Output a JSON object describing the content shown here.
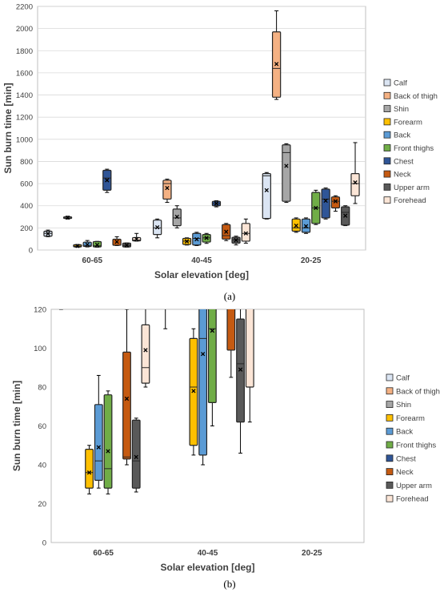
{
  "chart_data": [
    {
      "type": "box",
      "panel_label": "(a)",
      "categories": [
        "60-65",
        "40-45",
        "20-25"
      ],
      "xlabel": "Solar elevation [deg]",
      "ylabel": "Sun burn time [min]",
      "ylim": [
        0,
        2200
      ],
      "yticks": [
        0,
        200,
        400,
        600,
        800,
        1000,
        1200,
        1400,
        1600,
        1800,
        2000,
        2200
      ],
      "grid": true,
      "legend_position": "right",
      "series": [
        {
          "name": "Calf",
          "color": "#dbe5f3",
          "boxes": [
            {
              "min": 120,
              "q1": 125,
              "median": 150,
              "q3": 170,
              "max": 180,
              "mean": 148
            },
            {
              "min": 110,
              "q1": 140,
              "median": 200,
              "q3": 270,
              "max": 280,
              "mean": 205
            },
            {
              "min": 280,
              "q1": 285,
              "median": 670,
              "q3": 690,
              "max": 700,
              "mean": 540
            }
          ]
        },
        {
          "name": "Back of thigh",
          "color": "#f4b183",
          "boxes": [
            null,
            {
              "min": 430,
              "q1": 460,
              "median": 600,
              "q3": 630,
              "max": 640,
              "mean": 560
            },
            {
              "min": 1360,
              "q1": 1380,
              "median": 1640,
              "q3": 1970,
              "max": 2160,
              "mean": 1680
            }
          ]
        },
        {
          "name": "Shin",
          "color": "#a6a6a6",
          "boxes": [
            {
              "min": 280,
              "q1": 285,
              "median": 295,
              "q3": 300,
              "max": 305,
              "mean": 292
            },
            {
              "min": 200,
              "q1": 220,
              "median": 290,
              "q3": 370,
              "max": 400,
              "mean": 300
            },
            {
              "min": 430,
              "q1": 440,
              "median": 880,
              "q3": 950,
              "max": 960,
              "mean": 760
            }
          ]
        },
        {
          "name": "Forearm",
          "color": "#ffc000",
          "boxes": [
            {
              "min": 25,
              "q1": 28,
              "median": 36,
              "q3": 48,
              "max": 50,
              "mean": 36
            },
            {
              "min": 45,
              "q1": 50,
              "median": 80,
              "q3": 105,
              "max": 110,
              "mean": 78
            },
            {
              "min": 160,
              "q1": 170,
              "median": 200,
              "q3": 280,
              "max": 290,
              "mean": 220
            }
          ]
        },
        {
          "name": "Back",
          "color": "#5b9bd5",
          "boxes": [
            {
              "min": 28,
              "q1": 32,
              "median": 42,
              "q3": 71,
              "max": 86,
              "mean": 49
            },
            {
              "min": 40,
              "q1": 45,
              "median": 105,
              "q3": 150,
              "max": 160,
              "mean": 97
            },
            {
              "min": 150,
              "q1": 160,
              "median": 200,
              "q3": 280,
              "max": 290,
              "mean": 215
            }
          ]
        },
        {
          "name": "Front thighs",
          "color": "#70ad47",
          "boxes": [
            {
              "min": 25,
              "q1": 28,
              "median": 38,
              "q3": 76,
              "max": 78,
              "mean": 47
            },
            {
              "min": 60,
              "q1": 72,
              "median": 110,
              "q3": 140,
              "max": 150,
              "mean": 109
            },
            {
              "min": 230,
              "q1": 240,
              "median": 380,
              "q3": 520,
              "max": 540,
              "mean": 380
            }
          ]
        },
        {
          "name": "Chest",
          "color": "#2f5597",
          "boxes": [
            {
              "min": 520,
              "q1": 540,
              "median": 650,
              "q3": 720,
              "max": 730,
              "mean": 630
            },
            {
              "min": 390,
              "q1": 400,
              "median": 420,
              "q3": 440,
              "max": 445,
              "mean": 420
            },
            {
              "min": 280,
              "q1": 290,
              "median": 460,
              "q3": 550,
              "max": 560,
              "mean": 445
            }
          ]
        },
        {
          "name": "Neck",
          "color": "#c55a11",
          "boxes": [
            {
              "min": 40,
              "q1": 43,
              "median": 44,
              "q3": 98,
              "max": 120,
              "mean": 74
            },
            {
              "min": 85,
              "q1": 99,
              "median": 130,
              "q3": 230,
              "max": 240,
              "mean": 165
            },
            {
              "min": 350,
              "q1": 380,
              "median": 440,
              "q3": 480,
              "max": 490,
              "mean": 440
            }
          ]
        },
        {
          "name": "Upper arm",
          "color": "#595959",
          "boxes": [
            {
              "min": 26,
              "q1": 28,
              "median": 42,
              "q3": 63,
              "max": 64,
              "mean": 44
            },
            {
              "min": 46,
              "q1": 62,
              "median": 92,
              "q3": 115,
              "max": 125,
              "mean": 89
            },
            {
              "min": 220,
              "q1": 225,
              "median": 340,
              "q3": 390,
              "max": 400,
              "mean": 310
            }
          ]
        },
        {
          "name": "Forehead",
          "color": "#fbe5d6",
          "boxes": [
            {
              "min": 80,
              "q1": 82,
              "median": 90,
              "q3": 112,
              "max": 150,
              "mean": 99
            },
            {
              "min": 62,
              "q1": 80,
              "median": 150,
              "q3": 240,
              "max": 280,
              "mean": 150
            },
            {
              "min": 420,
              "q1": 490,
              "median": 600,
              "q3": 690,
              "max": 970,
              "mean": 610
            }
          ]
        }
      ]
    },
    {
      "type": "box",
      "panel_label": "(b)",
      "categories": [
        "60-65",
        "40-45",
        "20-25"
      ],
      "xlabel": "Solar elevation [deg]",
      "ylabel": "Sun burn time [min]",
      "ylim": [
        0,
        120
      ],
      "yticks": [
        0,
        20,
        40,
        60,
        80,
        100,
        120
      ],
      "grid": false,
      "legend_position": "right",
      "series_from": "same as (a), clipped to the 0–120 range"
    }
  ]
}
